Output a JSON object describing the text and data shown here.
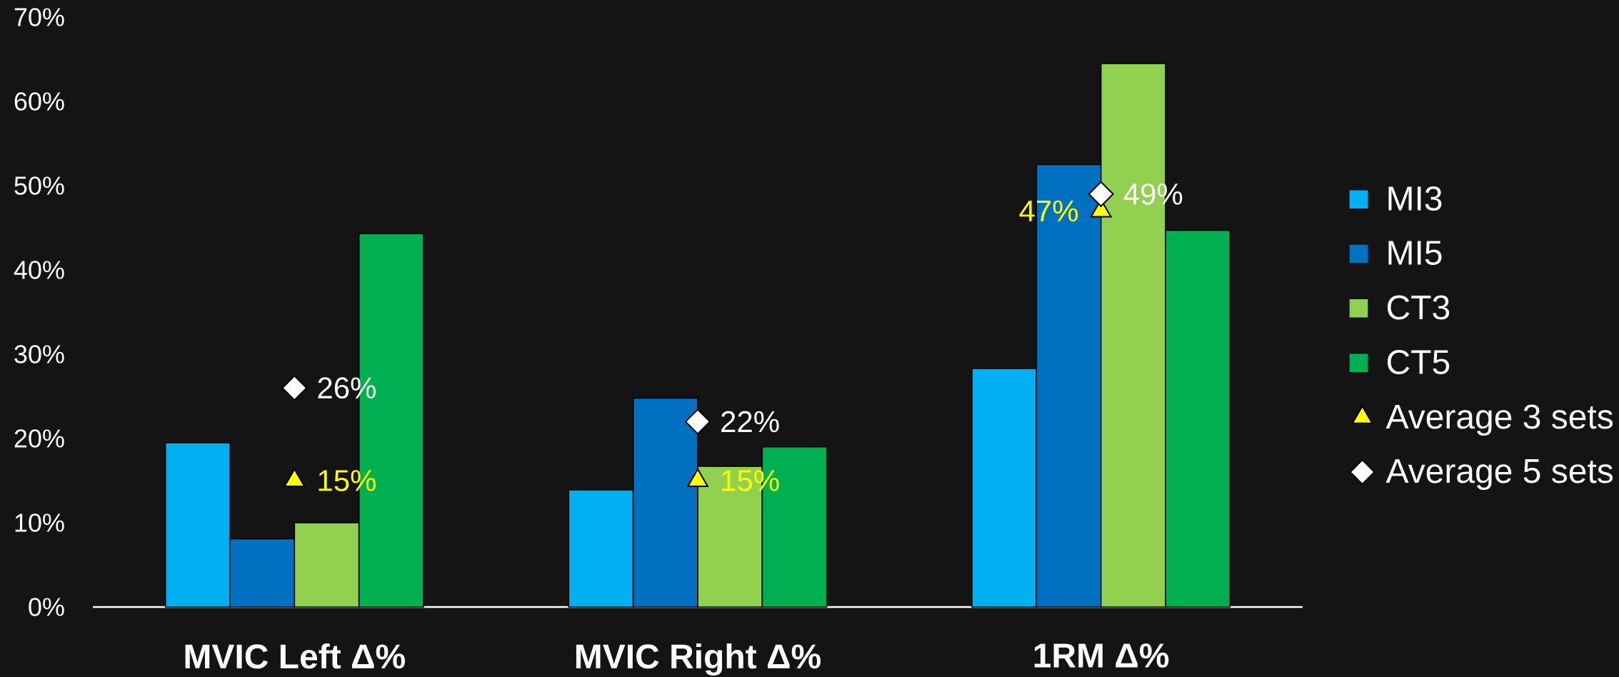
{
  "chart_data": {
    "type": "bar",
    "categories": [
      "MVIC Left Δ%",
      "MVIC Right Δ%",
      "1RM Δ%"
    ],
    "series": [
      {
        "name": "MI3",
        "color": "#00b0f0",
        "values": [
          19.5,
          13.9,
          28.3
        ]
      },
      {
        "name": "MI5",
        "color": "#0070c0",
        "values": [
          8.1,
          24.8,
          52.5
        ]
      },
      {
        "name": "CT3",
        "color": "#92d050",
        "values": [
          10.0,
          16.7,
          64.5
        ]
      },
      {
        "name": "CT5",
        "color": "#00b050",
        "values": [
          44.3,
          19.0,
          44.7
        ]
      },
      {
        "name": "Average 3 sets",
        "type": "scatter",
        "color": "#ffff00",
        "marker": "triangle",
        "x": [
          "MVIC Left Δ%",
          "MVIC Right Δ%",
          "1RM Δ%"
        ],
        "values": [
          15,
          15,
          47
        ],
        "value_labels": [
          "15%",
          "15%",
          "47%"
        ]
      },
      {
        "name": "Average 5 sets",
        "type": "scatter",
        "color": "#ffffff",
        "marker": "diamond",
        "x": [
          "MVIC Left Δ%",
          "MVIC Right Δ%",
          "1RM Δ%"
        ],
        "values": [
          26,
          22,
          49
        ],
        "value_labels": [
          "26%",
          "22%",
          "49%"
        ]
      }
    ],
    "ylim": [
      0,
      70
    ],
    "yticks": [
      {
        "value": 0,
        "label": "0%"
      },
      {
        "value": 10,
        "label": "10%"
      },
      {
        "value": 20,
        "label": "20%"
      },
      {
        "value": 30,
        "label": "30%"
      },
      {
        "value": 40,
        "label": "40%"
      },
      {
        "value": 50,
        "label": "50%"
      },
      {
        "value": 60,
        "label": "60%"
      },
      {
        "value": 70,
        "label": "70%"
      }
    ],
    "grid": false,
    "legend": "right"
  }
}
